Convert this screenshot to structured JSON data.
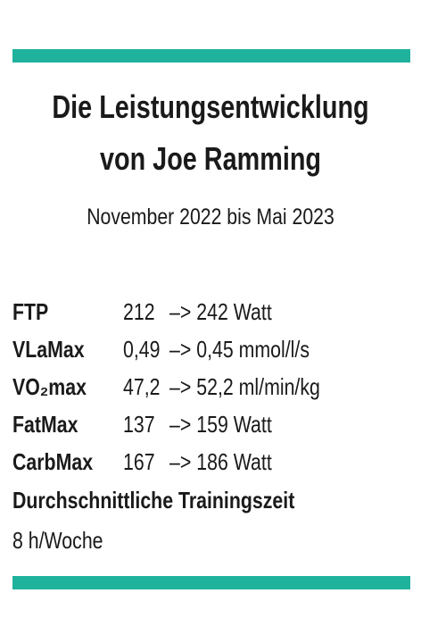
{
  "title_lines": [
    "Die Leistungsentwicklung",
    "von Joe Ramming"
  ],
  "subtitle": "November 2022 bis Mai 2023",
  "rows": [
    {
      "label": "FTP",
      "from": "212",
      "to": "–> 242 Watt"
    },
    {
      "label": "VLaMax",
      "from": "0,49",
      "to": "–> 0,45 mmol/l/s"
    },
    {
      "label": "VO₂max",
      "from": "47,2",
      "to": "–> 52,2 ml/min/kg"
    },
    {
      "label": "FatMax",
      "from": "137",
      "to": "–> 159 Watt"
    },
    {
      "label": "CarbMax",
      "from": "167",
      "to": "–> 186 Watt"
    }
  ],
  "training": {
    "label": "Durchschnittliche Trainingszeit",
    "value": "8 h/Woche"
  }
}
